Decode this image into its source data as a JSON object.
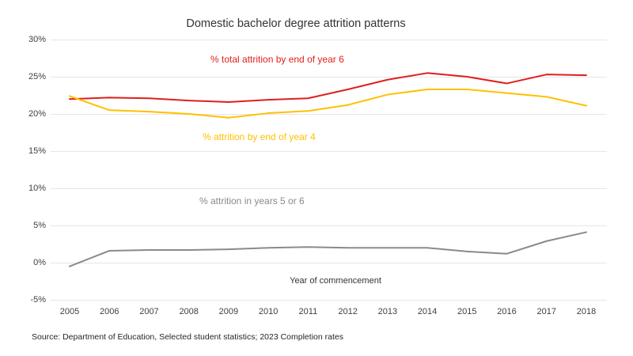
{
  "title": "Domestic bachelor degree attrition patterns",
  "source_note": "Source: Department of Education, Selected student statistics; 2023 Completion rates",
  "colors": {
    "red_series": "#df1f1c",
    "gold_series": "#ffc000",
    "gray_series": "#8a8a8a",
    "gridline": "#e6e6e6",
    "tick_text": "#404040",
    "title_text": "#333333"
  },
  "chart_data": {
    "type": "line",
    "title": "Domestic bachelor degree attrition patterns",
    "xlabel": "Year of commencement",
    "ylabel": "",
    "x": [
      2005,
      2006,
      2007,
      2008,
      2009,
      2010,
      2011,
      2012,
      2013,
      2014,
      2015,
      2016,
      2017,
      2018
    ],
    "ylim": [
      -5,
      30
    ],
    "ytick_step": 5,
    "ytick_suffix": "%",
    "grid": "horizontal",
    "legend": "inline-colored-labels",
    "series": [
      {
        "name": "% total attrition by end of year 6",
        "color": "#df1f1c",
        "values": [
          22.0,
          22.2,
          22.1,
          21.8,
          21.6,
          21.9,
          22.1,
          23.3,
          24.6,
          25.5,
          25.0,
          24.1,
          25.3,
          25.2
        ]
      },
      {
        "name": "% attrition by end of year 4",
        "color": "#ffc000",
        "values": [
          22.4,
          20.5,
          20.3,
          20.0,
          19.5,
          20.1,
          20.4,
          21.2,
          22.6,
          23.3,
          23.3,
          22.8,
          22.3,
          21.1
        ]
      },
      {
        "name": "% attrition in years 5 or 6",
        "color": "#8a8a8a",
        "values": [
          -0.5,
          1.6,
          1.7,
          1.7,
          1.8,
          2.0,
          2.1,
          2.0,
          2.0,
          2.0,
          1.5,
          1.2,
          2.9,
          4.1
        ]
      }
    ]
  }
}
